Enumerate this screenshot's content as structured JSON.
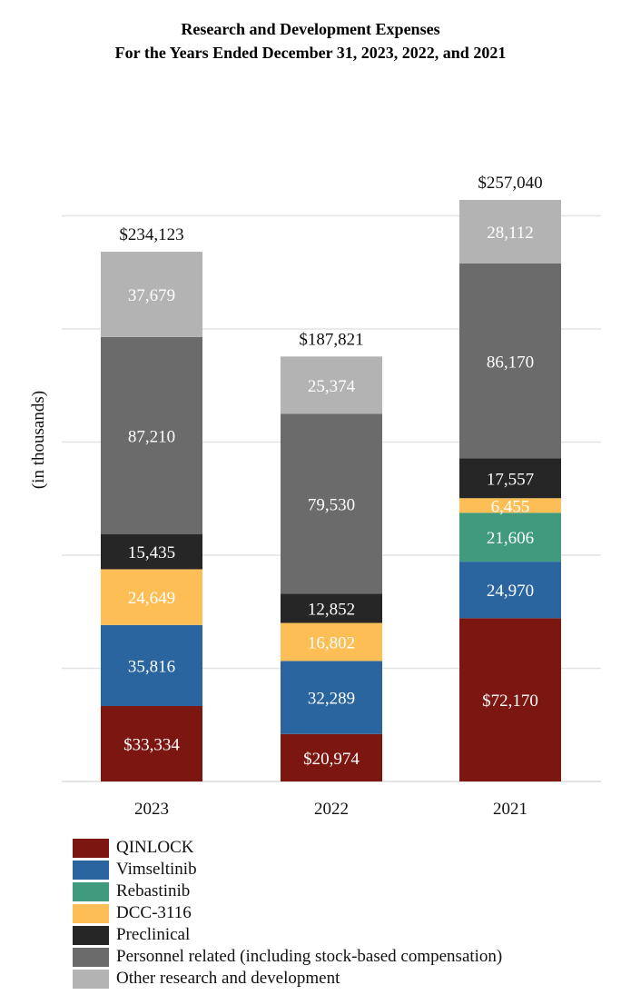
{
  "chart_data": {
    "type": "bar",
    "stacked": true,
    "title_lines": [
      "Research and Development Expenses",
      "For the Years Ended December 31, 2023, 2022, and 2021"
    ],
    "ylabel": "(in thousands)",
    "xlabel": "",
    "ylim": [
      0,
      300000
    ],
    "grid": true,
    "legend_position": "bottom-left",
    "categories": [
      "2023",
      "2022",
      "2021"
    ],
    "totals": [
      234123,
      187821,
      257040
    ],
    "total_labels": [
      "$234,123",
      "$187,821",
      "$257,040"
    ],
    "series": [
      {
        "name": "QINLOCK",
        "color": "#7b1610",
        "text_color": "#ffffff",
        "values": [
          33334,
          20974,
          72170
        ],
        "labels": [
          "$33,334",
          "$20,974",
          "$72,170"
        ]
      },
      {
        "name": "Vimseltinib",
        "color": "#2a65a0",
        "text_color": "#ffffff",
        "values": [
          35816,
          32289,
          24970
        ],
        "labels": [
          "35,816",
          "32,289",
          "24,970"
        ]
      },
      {
        "name": "Rebastinib",
        "color": "#3f9a7e",
        "text_color": "#ffffff",
        "values": [
          0,
          0,
          21606
        ],
        "labels": [
          "",
          "",
          "21,606"
        ]
      },
      {
        "name": "DCC-3116",
        "color": "#fdbf55",
        "text_color": "#ffffff",
        "values": [
          24649,
          16802,
          6455
        ],
        "labels": [
          "24,649",
          "16,802",
          "6,455"
        ]
      },
      {
        "name": "Preclinical",
        "color": "#262626",
        "text_color": "#ffffff",
        "values": [
          15435,
          12852,
          17557
        ],
        "labels": [
          "15,435",
          "12,852",
          "17,557"
        ]
      },
      {
        "name": "Personnel related (including stock-based compensation)",
        "color": "#6b6b6b",
        "text_color": "#ffffff",
        "values": [
          87210,
          79530,
          86170
        ],
        "labels": [
          "87,210",
          "79,530",
          "86,170"
        ]
      },
      {
        "name": "Other research and development",
        "color": "#b3b3b3",
        "text_color": "#ffffff",
        "values": [
          37679,
          25374,
          28112
        ],
        "labels": [
          "37,679",
          "25,374",
          "28,112"
        ]
      }
    ]
  }
}
